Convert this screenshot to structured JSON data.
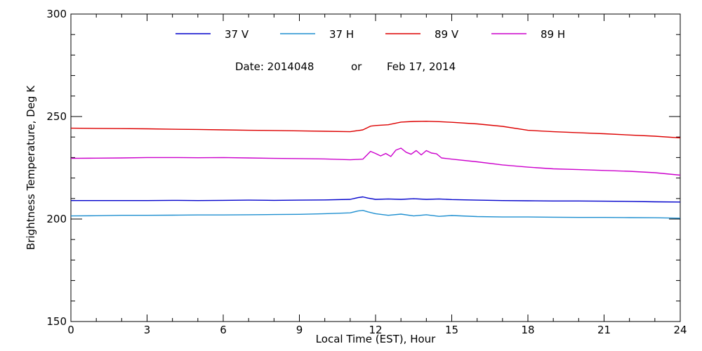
{
  "chart_data": {
    "type": "line",
    "xlabel": "Local Time (EST), Hour",
    "ylabel": "Brightness Temperature, Deg K",
    "xlim": [
      0,
      24
    ],
    "ylim": [
      150,
      300
    ],
    "xticks": [
      0,
      3,
      6,
      9,
      12,
      15,
      18,
      21,
      24
    ],
    "yticks": [
      150,
      200,
      250,
      300
    ],
    "date_text": {
      "label": "Date: 2014048",
      "connector": "or",
      "date": "Feb 17, 2014"
    },
    "series": [
      {
        "name": "37 V",
        "color": "#0000cc",
        "x": [
          0,
          1,
          2,
          3,
          4,
          5,
          6,
          7,
          8,
          9,
          10,
          11,
          11.3,
          11.5,
          11.7,
          12,
          12.5,
          13,
          13.5,
          14,
          14.5,
          15,
          16,
          17,
          18,
          19,
          20,
          21,
          22,
          23,
          24
        ],
        "y": [
          209.0,
          209.0,
          209.0,
          209.0,
          209.1,
          209.0,
          209.1,
          209.2,
          209.1,
          209.2,
          209.3,
          209.6,
          210.4,
          210.8,
          210.2,
          209.6,
          209.8,
          209.6,
          209.9,
          209.6,
          209.8,
          209.5,
          209.2,
          209.0,
          208.9,
          208.8,
          208.8,
          208.7,
          208.6,
          208.4,
          208.3
        ]
      },
      {
        "name": "37 H",
        "color": "#1e8fd0",
        "x": [
          0,
          1,
          2,
          3,
          4,
          5,
          6,
          7,
          8,
          9,
          10,
          11,
          11.3,
          11.5,
          11.7,
          12,
          12.5,
          13,
          13.5,
          14,
          14.5,
          15,
          16,
          17,
          18,
          19,
          20,
          21,
          22,
          23,
          24
        ],
        "y": [
          201.5,
          201.6,
          201.8,
          201.8,
          201.9,
          202.0,
          202.0,
          202.1,
          202.2,
          202.3,
          202.6,
          203.0,
          203.9,
          204.2,
          203.5,
          202.6,
          201.8,
          202.4,
          201.5,
          202.1,
          201.3,
          201.7,
          201.2,
          201.0,
          201.0,
          200.9,
          200.8,
          200.8,
          200.7,
          200.6,
          200.4
        ]
      },
      {
        "name": "89 V",
        "color": "#dd0000",
        "x": [
          0,
          1,
          2,
          3,
          4,
          5,
          6,
          7,
          8,
          9,
          10,
          11,
          11.5,
          11.8,
          12,
          12.5,
          13,
          13.5,
          14,
          14.5,
          15,
          16,
          17,
          18,
          19,
          20,
          21,
          22,
          23,
          24
        ],
        "y": [
          244.3,
          244.2,
          244.1,
          244.0,
          243.8,
          243.7,
          243.5,
          243.3,
          243.2,
          243.0,
          242.8,
          242.6,
          243.5,
          245.3,
          245.6,
          246.0,
          247.3,
          247.6,
          247.7,
          247.5,
          247.2,
          246.4,
          245.2,
          243.3,
          242.6,
          242.1,
          241.6,
          241.0,
          240.4,
          239.6
        ]
      },
      {
        "name": "89 H",
        "color": "#cc00cc",
        "x": [
          0,
          1,
          2,
          3,
          4,
          5,
          6,
          7,
          8,
          9,
          10,
          11,
          11.5,
          11.8,
          12,
          12.2,
          12.4,
          12.6,
          12.8,
          13.0,
          13.2,
          13.4,
          13.6,
          13.8,
          14.0,
          14.2,
          14.4,
          14.6,
          15,
          16,
          17,
          18,
          19,
          20,
          21,
          22,
          23,
          24
        ],
        "y": [
          229.6,
          229.7,
          229.8,
          230.0,
          230.0,
          229.9,
          230.0,
          229.8,
          229.6,
          229.5,
          229.3,
          228.9,
          229.2,
          233.0,
          232.0,
          230.8,
          232.0,
          230.5,
          233.6,
          234.6,
          232.6,
          231.6,
          233.4,
          231.3,
          233.4,
          232.2,
          231.8,
          229.8,
          229.2,
          227.9,
          226.4,
          225.3,
          224.5,
          224.1,
          223.7,
          223.3,
          222.6,
          221.4
        ]
      }
    ]
  }
}
